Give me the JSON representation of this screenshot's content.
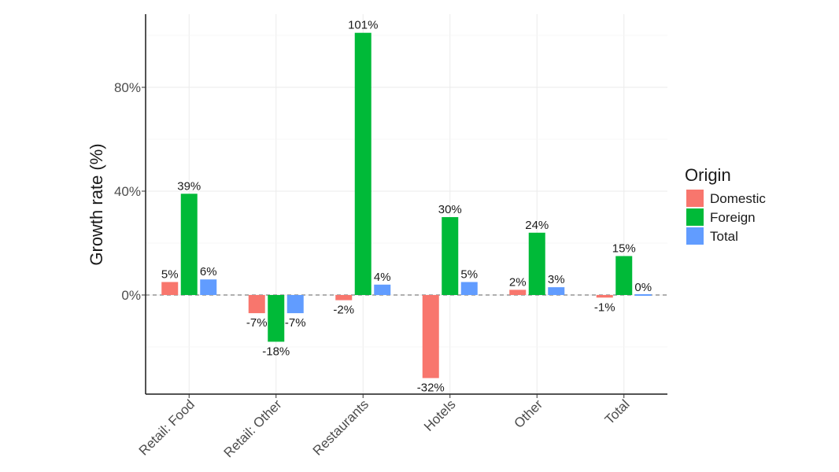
{
  "chart_data": {
    "type": "bar",
    "title": "",
    "xlabel": "",
    "ylabel": "Growth rate (%)",
    "ylim": [
      -38,
      108
    ],
    "yticks": [
      0,
      40,
      80
    ],
    "ytick_labels": [
      "0%",
      "40%",
      "80%"
    ],
    "categories": [
      "Retail: Food",
      "Retail: Other",
      "Restaurants",
      "Hotels",
      "Other",
      "Total"
    ],
    "series": [
      {
        "name": "Domestic",
        "color": "#f8766d",
        "values": [
          5,
          -7,
          -2,
          -32,
          2,
          -1
        ],
        "labels": [
          "5%",
          "-7%",
          "-2%",
          "-32%",
          "2%",
          "-1%"
        ]
      },
      {
        "name": "Foreign",
        "color": "#00ba38",
        "values": [
          39,
          -18,
          101,
          30,
          24,
          15
        ],
        "labels": [
          "39%",
          "-18%",
          "101%",
          "30%",
          "24%",
          "15%"
        ]
      },
      {
        "name": "Total",
        "color": "#619cff",
        "values": [
          6,
          -7,
          4,
          5,
          3,
          0
        ],
        "labels": [
          "6%",
          "-7%",
          "4%",
          "5%",
          "3%",
          "0%"
        ]
      }
    ],
    "legend": {
      "title": "Origin",
      "position": "right"
    },
    "grid": true,
    "reference_line": {
      "y": 0,
      "style": "dashed"
    }
  }
}
